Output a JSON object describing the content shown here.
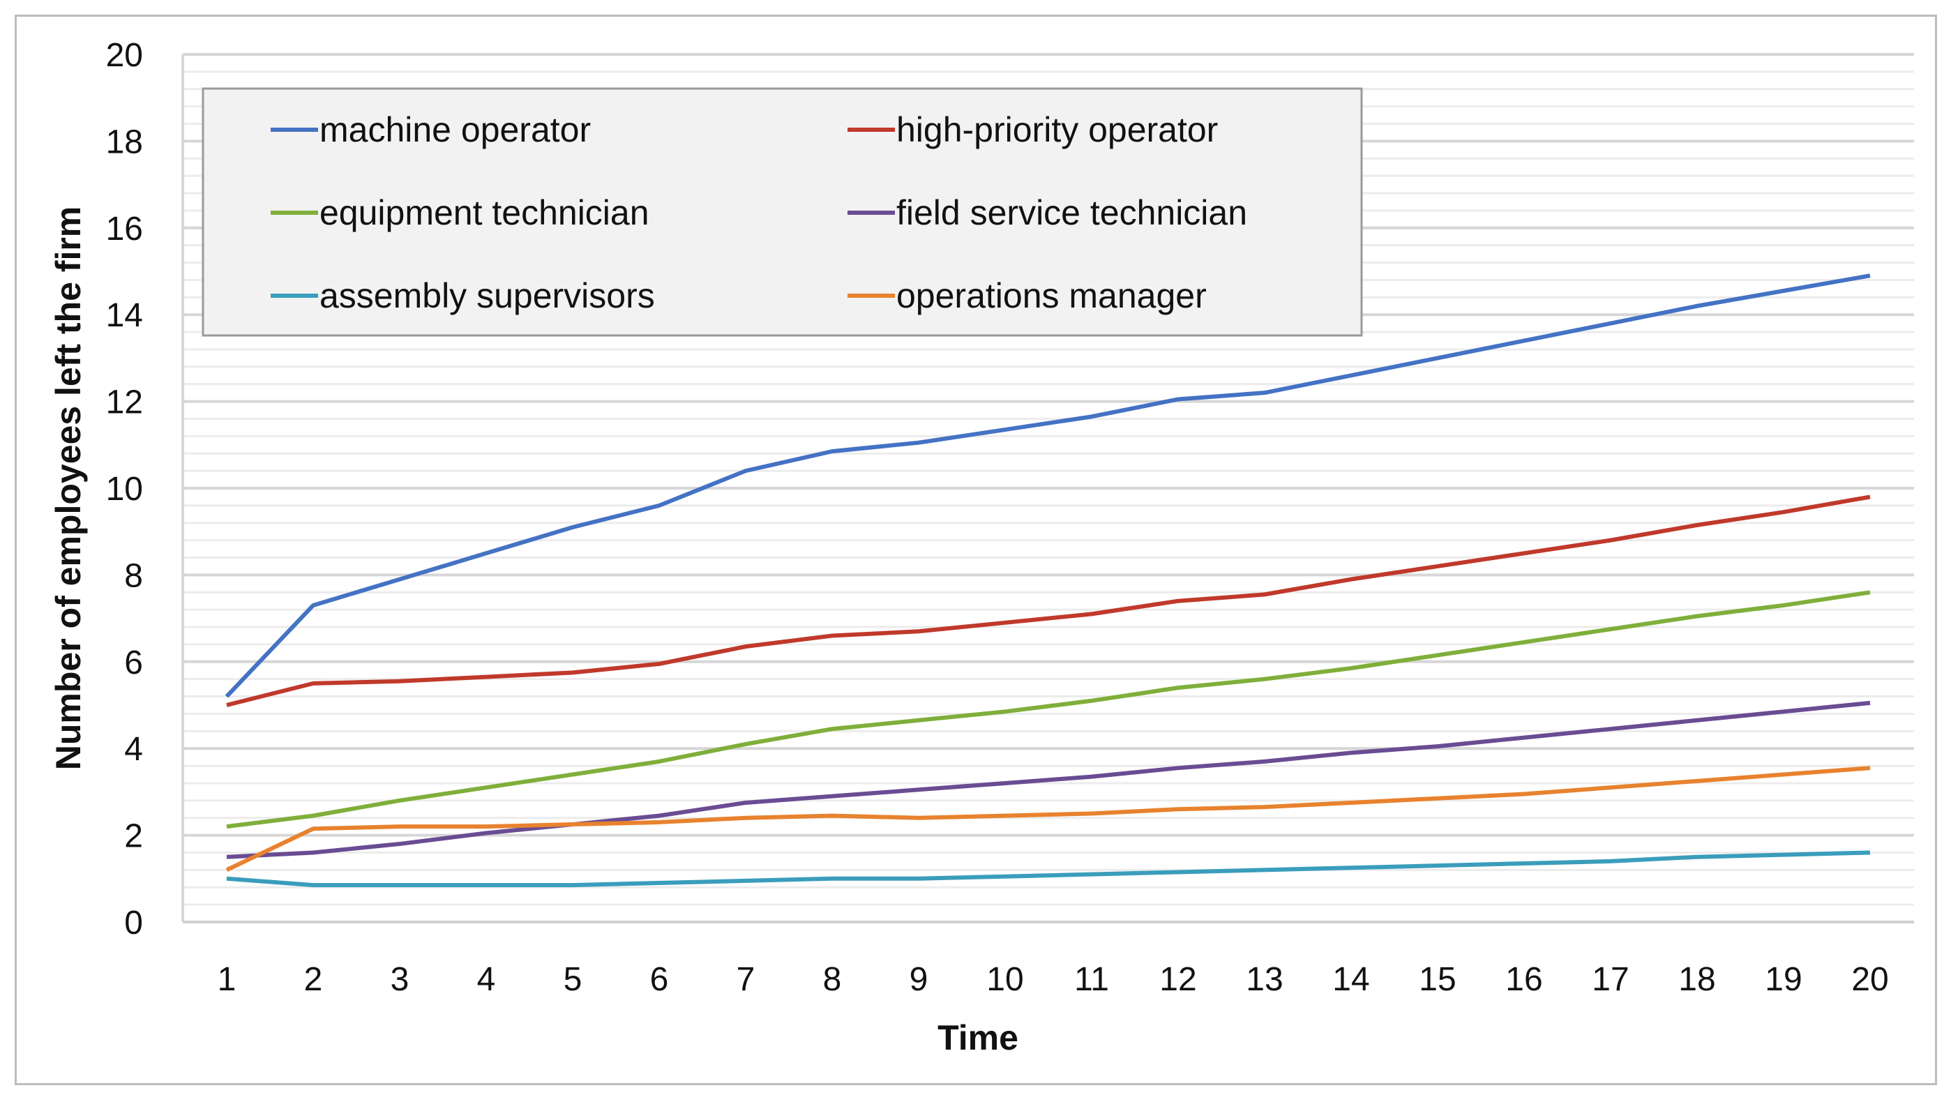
{
  "chart_data": {
    "type": "line",
    "title": "",
    "xlabel": "Time",
    "ylabel": "Number of employees left the firm",
    "x": [
      1,
      2,
      3,
      4,
      5,
      6,
      7,
      8,
      9,
      10,
      11,
      12,
      13,
      14,
      15,
      16,
      17,
      18,
      19,
      20
    ],
    "ylim": [
      0,
      20
    ],
    "yticks": [
      0,
      2,
      4,
      6,
      8,
      10,
      12,
      14,
      16,
      18,
      20
    ],
    "grid": true,
    "legend_placement": "top-left",
    "series": [
      {
        "name": "machine operator",
        "color": "#4472c4",
        "values": [
          5.2,
          7.3,
          7.9,
          8.5,
          9.1,
          9.6,
          10.4,
          10.85,
          11.05,
          11.35,
          11.65,
          12.05,
          12.2,
          12.6,
          13.0,
          13.4,
          13.8,
          14.2,
          14.55,
          14.9
        ]
      },
      {
        "name": "high-priority operator",
        "color": "#c0392b",
        "values": [
          5.0,
          5.5,
          5.55,
          5.65,
          5.75,
          5.95,
          6.35,
          6.6,
          6.7,
          6.9,
          7.1,
          7.4,
          7.55,
          7.9,
          8.2,
          8.5,
          8.8,
          9.15,
          9.45,
          9.8
        ]
      },
      {
        "name": "equipment technician",
        "color": "#7faf3a",
        "values": [
          2.2,
          2.45,
          2.8,
          3.1,
          3.4,
          3.7,
          4.1,
          4.45,
          4.65,
          4.85,
          5.1,
          5.4,
          5.6,
          5.85,
          6.15,
          6.45,
          6.75,
          7.05,
          7.3,
          7.6
        ]
      },
      {
        "name": "field service technician",
        "color": "#6a4c93",
        "values": [
          1.5,
          1.6,
          1.8,
          2.05,
          2.25,
          2.45,
          2.75,
          2.9,
          3.05,
          3.2,
          3.35,
          3.55,
          3.7,
          3.9,
          4.05,
          4.25,
          4.45,
          4.65,
          4.85,
          5.05
        ]
      },
      {
        "name": "assembly supervisors",
        "color": "#3a9dbb",
        "values": [
          1.0,
          0.85,
          0.85,
          0.85,
          0.85,
          0.9,
          0.95,
          1.0,
          1.0,
          1.05,
          1.1,
          1.15,
          1.2,
          1.25,
          1.3,
          1.35,
          1.4,
          1.5,
          1.55,
          1.6
        ]
      },
      {
        "name": "operations manager",
        "color": "#e8822e",
        "values": [
          1.2,
          2.15,
          2.2,
          2.2,
          2.25,
          2.3,
          2.4,
          2.45,
          2.4,
          2.45,
          2.5,
          2.6,
          2.65,
          2.75,
          2.85,
          2.95,
          3.1,
          3.25,
          3.4,
          3.55
        ]
      }
    ]
  }
}
